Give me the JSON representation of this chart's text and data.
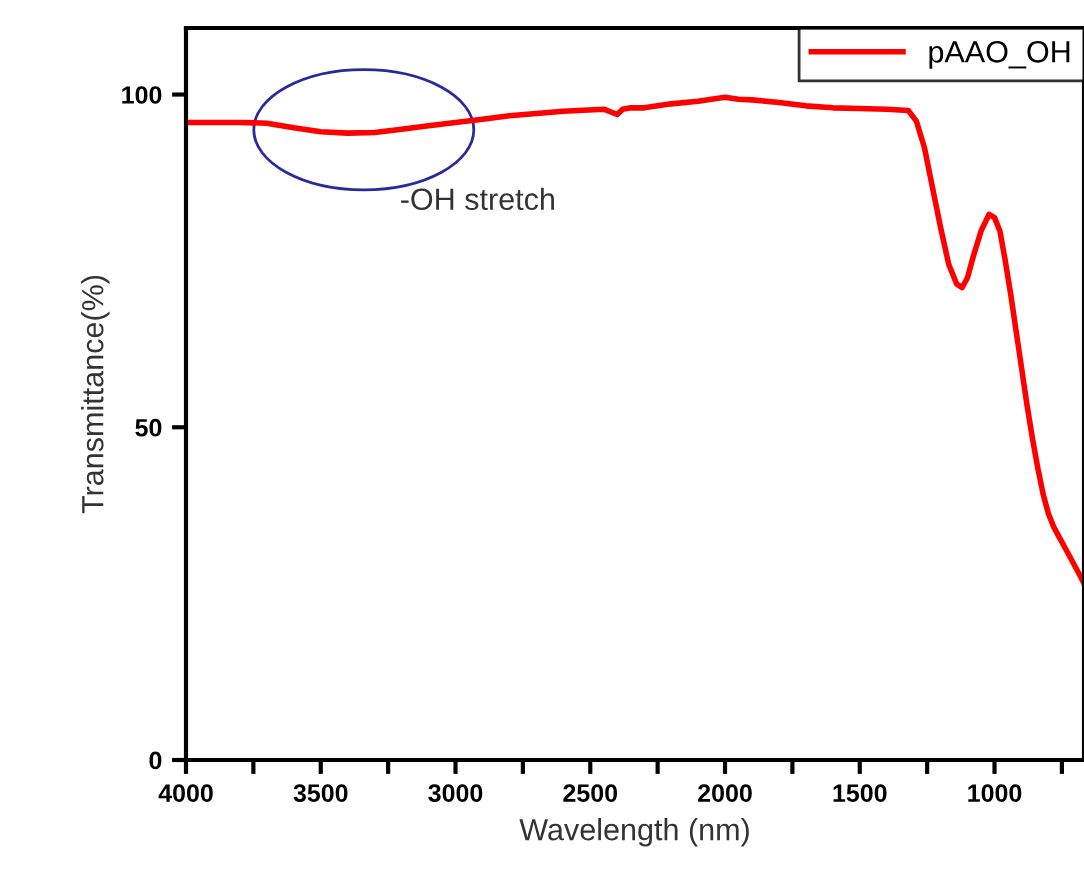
{
  "chart_data": {
    "type": "line",
    "xlabel": "Wavelength (nm)",
    "ylabel": "Transmittance(%)",
    "xlim": [
      4000,
      668
    ],
    "ylim": [
      0,
      110
    ],
    "xticks": [
      4000,
      {
        "value": 3750,
        "label": null
      },
      3500,
      {
        "value": 3250,
        "label": null
      },
      3000,
      {
        "value": 2750,
        "label": null
      },
      2500,
      {
        "value": 2250,
        "label": null
      },
      2000,
      {
        "value": 1750,
        "label": null
      },
      1500,
      {
        "value": 1250,
        "label": null
      },
      1000,
      {
        "value": 750,
        "label": null
      }
    ],
    "yticks": [
      0,
      50,
      100
    ],
    "series": [
      {
        "name": "pAAO_OH",
        "color": "#ff0000",
        "x": [
          4000,
          3800,
          3700,
          3600,
          3500,
          3400,
          3300,
          3200,
          3100,
          3000,
          2900,
          2800,
          2600,
          2450,
          2400,
          2380,
          2350,
          2300,
          2200,
          2100,
          2000,
          1950,
          1900,
          1800,
          1700,
          1600,
          1500,
          1400,
          1320,
          1290,
          1260,
          1230,
          1200,
          1170,
          1140,
          1120,
          1100,
          1080,
          1050,
          1020,
          1000,
          980,
          960,
          940,
          920,
          900,
          880,
          860,
          840,
          820,
          800,
          780,
          760,
          740,
          720,
          700,
          680,
          668
        ],
        "values": [
          95.8,
          95.8,
          95.7,
          95.0,
          94.4,
          94.2,
          94.3,
          94.8,
          95.3,
          95.8,
          96.3,
          96.8,
          97.5,
          97.8,
          97.0,
          97.8,
          98.0,
          98.0,
          98.6,
          99.0,
          99.6,
          99.3,
          99.2,
          98.8,
          98.3,
          98.0,
          97.9,
          97.8,
          97.6,
          96.0,
          92.0,
          86.0,
          80.0,
          74.5,
          71.5,
          71.0,
          72.5,
          75.5,
          79.5,
          82.0,
          81.5,
          79.5,
          75.0,
          70.0,
          64.5,
          59.0,
          53.5,
          48.5,
          44.0,
          40.0,
          37.0,
          35.0,
          33.5,
          32.0,
          30.5,
          29.0,
          27.5,
          26.5
        ]
      }
    ],
    "annotations": [
      "-OH stretch"
    ],
    "legend": "top right",
    "grid": false,
    "line_style": "solid",
    "marker": "none"
  }
}
